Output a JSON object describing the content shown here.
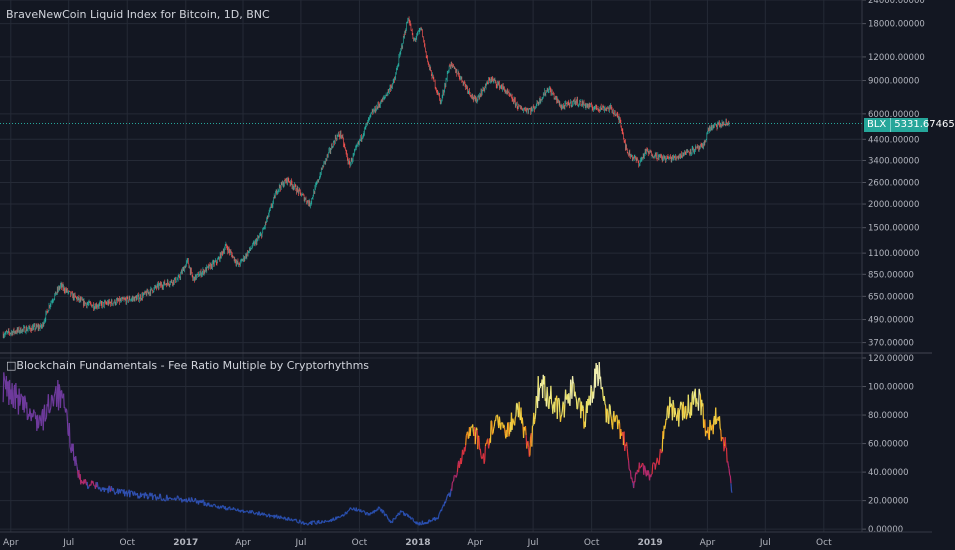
{
  "main": {
    "title": "BraveNewCoin Liquid Index for Bitcoin, 1D, BNC",
    "last_price_symbol": "BLX",
    "last_price": "5331.67465"
  },
  "indicator": {
    "title": "□Blockchain Fundamentals - Fee Ratio Multiple by Cryptorhythms"
  },
  "colors": {
    "background": "#131722",
    "grid": "#252a36",
    "axis_text": "#b2b5be",
    "up": "#26a69a",
    "down": "#ef5350",
    "price_line": "#26a69a"
  },
  "chart_data": [
    {
      "type": "candlestick",
      "title": "BraveNewCoin Liquid Index for Bitcoin, 1D, BNC",
      "y_scale": "log",
      "ylim": [
        330,
        24000
      ],
      "y_ticks": [
        "370.00000",
        "490.00000",
        "650.00000",
        "850.00000",
        "1100.00000",
        "1500.00000",
        "2000.00000",
        "2600.00000",
        "3400.00000",
        "4400.00000",
        "6000.00000",
        "9000.00000",
        "12000.00000",
        "18000.00000",
        "24000.00000"
      ],
      "x_ticks": [
        "Apr",
        "Jul",
        "Oct",
        "2017",
        "Apr",
        "Jul",
        "Oct",
        "2018",
        "Apr",
        "Jul",
        "Oct",
        "2019",
        "Apr",
        "Jul",
        "Oct"
      ],
      "x_range": [
        "2016-03-15",
        "2019-11-30"
      ],
      "last_value": 5331.67465,
      "grid": true,
      "x": [
        "2016-03-20",
        "2016-04-15",
        "2016-05-20",
        "2016-06-01",
        "2016-06-18",
        "2016-07-05",
        "2016-07-25",
        "2016-08-10",
        "2016-09-15",
        "2016-10-20",
        "2016-11-20",
        "2016-12-20",
        "2017-01-04",
        "2017-01-12",
        "2017-02-20",
        "2017-03-05",
        "2017-03-25",
        "2017-05-01",
        "2017-05-25",
        "2017-06-10",
        "2017-07-15",
        "2017-08-05",
        "2017-08-25",
        "2017-09-02",
        "2017-09-15",
        "2017-10-01",
        "2017-10-20",
        "2017-11-08",
        "2017-11-25",
        "2017-12-07",
        "2017-12-17",
        "2017-12-25",
        "2018-01-06",
        "2018-01-17",
        "2018-02-06",
        "2018-02-20",
        "2018-03-05",
        "2018-04-01",
        "2018-04-25",
        "2018-05-15",
        "2018-06-10",
        "2018-06-30",
        "2018-07-25",
        "2018-08-15",
        "2018-09-05",
        "2018-10-01",
        "2018-11-01",
        "2018-11-15",
        "2018-11-25",
        "2018-12-15",
        "2018-12-25",
        "2019-01-20",
        "2019-02-08",
        "2019-03-01",
        "2019-03-25",
        "2019-04-03",
        "2019-04-15",
        "2019-04-25",
        "2019-05-05"
      ],
      "values": [
        410,
        430,
        450,
        590,
        740,
        660,
        600,
        580,
        610,
        640,
        740,
        800,
        1000,
        800,
        1000,
        1200,
        950,
        1400,
        2400,
        2700,
        2000,
        3200,
        4500,
        4700,
        3200,
        4300,
        6000,
        7200,
        9000,
        14000,
        19500,
        14500,
        17000,
        11000,
        6900,
        11000,
        9800,
        7000,
        9200,
        8200,
        6400,
        6300,
        8200,
        6500,
        7000,
        6500,
        6400,
        5500,
        3800,
        3300,
        3800,
        3500,
        3500,
        3800,
        4000,
        5000,
        5200,
        5300,
        5331.67465
      ]
    },
    {
      "type": "line",
      "title": "□Blockchain Fundamentals - Fee Ratio Multiple by Cryptorhythms",
      "ylim": [
        -2,
        120
      ],
      "y_ticks": [
        "0.00000",
        "20.00000",
        "40.00000",
        "60.00000",
        "80.00000",
        "100.00000",
        "120.00000"
      ],
      "grid": true,
      "color_scale": "value-coloured: blue (low) → purple/red → orange → yellow → pale yellow (high)",
      "x": [
        "2016-03-20",
        "2016-04-10",
        "2016-05-01",
        "2016-05-20",
        "2016-06-10",
        "2016-06-25",
        "2016-07-05",
        "2016-07-20",
        "2016-09-01",
        "2016-10-15",
        "2016-12-01",
        "2017-01-15",
        "2017-03-01",
        "2017-04-15",
        "2017-06-01",
        "2017-07-10",
        "2017-08-01",
        "2017-09-01",
        "2017-09-20",
        "2017-10-15",
        "2017-11-01",
        "2017-11-20",
        "2017-12-05",
        "2017-12-20",
        "2018-01-01",
        "2018-01-15",
        "2018-02-01",
        "2018-02-20",
        "2018-03-10",
        "2018-03-25",
        "2018-04-15",
        "2018-05-01",
        "2018-05-20",
        "2018-06-10",
        "2018-06-25",
        "2018-07-10",
        "2018-07-25",
        "2018-08-15",
        "2018-09-01",
        "2018-09-20",
        "2018-10-10",
        "2018-10-25",
        "2018-11-15",
        "2018-11-25",
        "2018-12-05",
        "2018-12-15",
        "2019-01-01",
        "2019-01-15",
        "2019-02-01",
        "2019-02-15",
        "2019-03-01",
        "2019-03-20",
        "2019-04-01",
        "2019-04-15",
        "2019-05-01",
        "2019-05-10"
      ],
      "values": [
        100,
        92,
        80,
        75,
        98,
        84,
        60,
        33,
        28,
        24,
        22,
        20,
        15,
        12,
        8,
        4,
        5,
        8,
        15,
        10,
        15,
        5,
        12,
        8,
        4,
        5,
        8,
        25,
        50,
        75,
        50,
        78,
        70,
        85,
        52,
        100,
        95,
        82,
        100,
        78,
        112,
        82,
        70,
        57,
        30,
        45,
        38,
        50,
        88,
        80,
        85,
        92,
        65,
        80,
        55,
        25
      ]
    }
  ]
}
